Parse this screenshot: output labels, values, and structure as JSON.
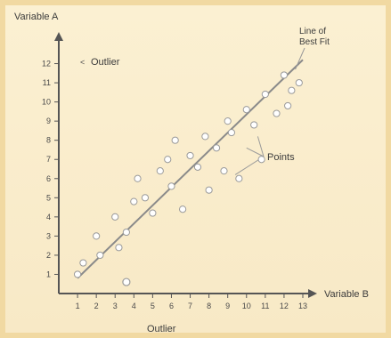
{
  "chart_data": {
    "type": "scatter",
    "title": "",
    "ylabel": "Variable A",
    "xlabel": "Variable B",
    "x_axis_caption": "Outlier",
    "xlim": [
      0,
      13
    ],
    "ylim": [
      0,
      13
    ],
    "x_ticks": [
      "1",
      "2",
      "3",
      "4",
      "5",
      "6",
      "7",
      "8",
      "9",
      "10",
      "11",
      "12",
      "13"
    ],
    "y_ticks": [
      "1",
      "2",
      "3",
      "4",
      "5",
      "6",
      "7",
      "8",
      "9",
      "10",
      "11",
      "12"
    ],
    "annotations": {
      "outlier": "Outlier",
      "line": "Line of Best Fit",
      "points": "Points"
    },
    "trend_line": {
      "x": [
        1,
        13
      ],
      "y": [
        0.8,
        12.2
      ]
    },
    "points": [
      {
        "x": 1,
        "y": 1
      },
      {
        "x": 1.3,
        "y": 1.6
      },
      {
        "x": 2,
        "y": 3
      },
      {
        "x": 2.2,
        "y": 2
      },
      {
        "x": 3,
        "y": 4
      },
      {
        "x": 3.2,
        "y": 2.4
      },
      {
        "x": 3.6,
        "y": 3.2
      },
      {
        "x": 4,
        "y": 4.8
      },
      {
        "x": 4.2,
        "y": 6
      },
      {
        "x": 4.6,
        "y": 5
      },
      {
        "x": 5,
        "y": 4.2
      },
      {
        "x": 5.4,
        "y": 6.4
      },
      {
        "x": 5.8,
        "y": 7
      },
      {
        "x": 6,
        "y": 5.6
      },
      {
        "x": 6.2,
        "y": 8
      },
      {
        "x": 6.6,
        "y": 4.4
      },
      {
        "x": 7,
        "y": 7.2
      },
      {
        "x": 7.4,
        "y": 6.6
      },
      {
        "x": 7.8,
        "y": 8.2
      },
      {
        "x": 8,
        "y": 5.4
      },
      {
        "x": 8.4,
        "y": 7.6
      },
      {
        "x": 8.8,
        "y": 6.4
      },
      {
        "x": 9,
        "y": 9
      },
      {
        "x": 9.2,
        "y": 8.4
      },
      {
        "x": 9.6,
        "y": 6
      },
      {
        "x": 10,
        "y": 9.6
      },
      {
        "x": 10.4,
        "y": 8.8
      },
      {
        "x": 10.8,
        "y": 7
      },
      {
        "x": 11,
        "y": 10.4
      },
      {
        "x": 11.6,
        "y": 9.4
      },
      {
        "x": 12,
        "y": 11.4
      },
      {
        "x": 12.4,
        "y": 10.6
      },
      {
        "x": 12.2,
        "y": 9.8
      },
      {
        "x": 12.8,
        "y": 11
      }
    ],
    "outlier_point": {
      "x": 3.6,
      "y": 0.6
    },
    "grid": false,
    "colors": {
      "points": "#ffffff",
      "point_stroke": "#9a9a9a",
      "axis": "#555555",
      "line": "#8a8a8a"
    }
  }
}
